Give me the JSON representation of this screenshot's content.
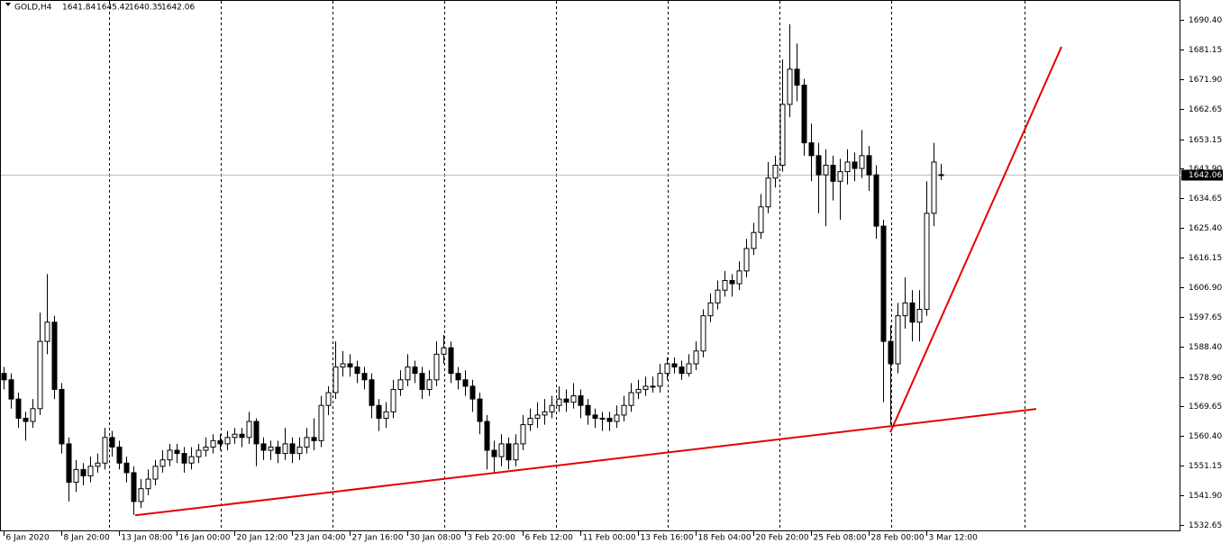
{
  "chart_data": {
    "type": "candlestick",
    "symbol": "GOLD,H4",
    "categories": [
      "6 Jan 2020",
      null,
      null,
      null,
      null,
      null,
      null,
      null,
      "8 Jan 20:00",
      null,
      null,
      null,
      null,
      null,
      null,
      null,
      "13 Jan 08:00",
      null,
      null,
      null,
      null,
      null,
      null,
      null,
      "16 Jan 00:00",
      null,
      null,
      null,
      null,
      null,
      null,
      null,
      "20 Jan 12:00",
      null,
      null,
      null,
      null,
      null,
      null,
      null,
      "23 Jan 04:00",
      null,
      null,
      null,
      null,
      null,
      null,
      null,
      "27 Jan 16:00",
      null,
      null,
      null,
      null,
      null,
      null,
      null,
      "30 Jan 08:00",
      null,
      null,
      null,
      null,
      null,
      null,
      null,
      "3 Feb 20:00",
      null,
      null,
      null,
      null,
      null,
      null,
      null,
      "6 Feb 12:00",
      null,
      null,
      null,
      null,
      null,
      null,
      null,
      "11 Feb 00:00",
      null,
      null,
      null,
      null,
      null,
      null,
      null,
      "13 Feb 16:00",
      null,
      null,
      null,
      null,
      null,
      null,
      null,
      "18 Feb 04:00",
      null,
      null,
      null,
      null,
      null,
      null,
      null,
      "20 Feb 20:00",
      null,
      null,
      null,
      null,
      null,
      null,
      null,
      "25 Feb 08:00",
      null,
      null,
      null,
      null,
      null,
      null,
      null,
      "28 Feb 00:00",
      null,
      null,
      null,
      null,
      null,
      null,
      null,
      "3 Mar 12:00",
      null,
      null
    ],
    "open": [
      1580,
      1578,
      1572,
      1566,
      1565,
      1569,
      1590,
      1596,
      1575,
      1558,
      1546,
      1550,
      1548,
      1551,
      1552,
      1560,
      1557,
      1552,
      1549,
      1540,
      1544,
      1547,
      1551,
      1553,
      1556,
      1555,
      1552,
      1554,
      1556,
      1557,
      1559,
      1558,
      1560,
      1561,
      1560,
      1565,
      1558,
      1556,
      1557,
      1555,
      1558,
      1555,
      1557,
      1560,
      1559,
      1570,
      1574,
      1582,
      1583,
      1582,
      1580,
      1578,
      1570,
      1566,
      1568,
      1575,
      1578,
      1582,
      1580,
      1575,
      1578,
      1586,
      1588,
      1580,
      1578,
      1576,
      1572,
      1565,
      1556,
      1554,
      1558,
      1553,
      1558,
      1564,
      1566,
      1567,
      1568,
      1570,
      1572,
      1571,
      1573,
      1570,
      1567,
      1566,
      1566,
      1565,
      1567,
      1570,
      1574,
      1575,
      1576,
      1576,
      1580,
      1583,
      1582,
      1580,
      1583,
      1587,
      1598,
      1602,
      1606,
      1609,
      1608,
      1612,
      1619,
      1624,
      1632,
      1641,
      1645,
      1664,
      1675,
      1670,
      1652,
      1648,
      1642,
      1645,
      1640,
      1643,
      1646,
      1644,
      1648,
      1642,
      1626,
      1590,
      1583,
      1598,
      1602,
      1596,
      1600,
      1630,
      1641.84
    ],
    "high": [
      1582,
      1580,
      1574,
      1568,
      1572,
      1599,
      1611,
      1598,
      1577,
      1560,
      1553,
      1552,
      1554,
      1555,
      1563,
      1562,
      1559,
      1554,
      1551,
      1547,
      1550,
      1553,
      1556,
      1558,
      1558,
      1557,
      1557,
      1558,
      1560,
      1561,
      1561,
      1562,
      1563,
      1563,
      1568,
      1566,
      1560,
      1559,
      1559,
      1563,
      1560,
      1560,
      1563,
      1566,
      1573,
      1576,
      1590,
      1587,
      1586,
      1584,
      1582,
      1580,
      1572,
      1571,
      1578,
      1581,
      1586,
      1584,
      1582,
      1581,
      1590,
      1592,
      1590,
      1582,
      1581,
      1578,
      1574,
      1567,
      1559,
      1561,
      1560,
      1561,
      1567,
      1569,
      1571,
      1572,
      1573,
      1576,
      1575,
      1577,
      1575,
      1572,
      1569,
      1568,
      1568,
      1570,
      1573,
      1577,
      1578,
      1579,
      1579,
      1583,
      1585,
      1585,
      1584,
      1586,
      1590,
      1600,
      1605,
      1609,
      1612,
      1611,
      1615,
      1622,
      1627,
      1636,
      1646,
      1648,
      1678,
      1689,
      1683,
      1672,
      1658,
      1652,
      1650,
      1648,
      1647,
      1650,
      1649,
      1656,
      1651,
      1645,
      1628,
      1595,
      1602,
      1610,
      1606,
      1606,
      1640,
      1652,
      1645.42
    ],
    "low": [
      1575,
      1569,
      1563,
      1559,
      1563,
      1567,
      1586,
      1572,
      1555,
      1540,
      1543,
      1545,
      1546,
      1549,
      1550,
      1554,
      1550,
      1546,
      1535.8,
      1538,
      1542,
      1545,
      1549,
      1551,
      1552,
      1549,
      1550,
      1552,
      1554,
      1555,
      1556,
      1556,
      1558,
      1557,
      1558,
      1551,
      1553,
      1553,
      1552,
      1553,
      1552,
      1553,
      1555,
      1556,
      1557,
      1567,
      1572,
      1579,
      1579,
      1577,
      1575,
      1566,
      1562,
      1563,
      1566,
      1573,
      1576,
      1577,
      1572,
      1573,
      1576,
      1583,
      1577,
      1575,
      1573,
      1568,
      1561,
      1550,
      1549,
      1551,
      1550,
      1551,
      1556,
      1562,
      1563,
      1564,
      1566,
      1568,
      1568,
      1569,
      1566,
      1564,
      1563,
      1562,
      1562,
      1563,
      1565,
      1568,
      1572,
      1573,
      1574,
      1574,
      1578,
      1580,
      1578,
      1579,
      1581,
      1585,
      1596,
      1600,
      1604,
      1604,
      1606,
      1610,
      1617,
      1622,
      1630,
      1638,
      1643,
      1660,
      1665,
      1648,
      1640,
      1630,
      1626,
      1634,
      1628,
      1639,
      1640,
      1641,
      1637,
      1622,
      1571,
      1564,
      1580,
      1594,
      1590,
      1590,
      1598,
      1626,
      1640.35
    ],
    "close": [
      1578,
      1572,
      1566,
      1565,
      1569,
      1590,
      1596,
      1575,
      1558,
      1546,
      1550,
      1548,
      1551,
      1552,
      1560,
      1557,
      1552,
      1549,
      1540,
      1544,
      1547,
      1551,
      1553,
      1556,
      1555,
      1552,
      1554,
      1556,
      1557,
      1559,
      1558,
      1560,
      1561,
      1560,
      1565,
      1558,
      1556,
      1557,
      1555,
      1558,
      1555,
      1557,
      1560,
      1559,
      1570,
      1574,
      1582,
      1583,
      1582,
      1580,
      1578,
      1570,
      1566,
      1568,
      1575,
      1578,
      1582,
      1580,
      1575,
      1578,
      1586,
      1588,
      1580,
      1578,
      1576,
      1572,
      1565,
      1556,
      1554,
      1558,
      1553,
      1558,
      1564,
      1566,
      1567,
      1568,
      1570,
      1572,
      1571,
      1573,
      1570,
      1567,
      1566,
      1566,
      1565,
      1567,
      1570,
      1574,
      1575,
      1576,
      1576,
      1580,
      1583,
      1582,
      1580,
      1583,
      1587,
      1598,
      1602,
      1606,
      1609,
      1608,
      1612,
      1619,
      1624,
      1632,
      1641,
      1645,
      1664,
      1675,
      1670,
      1652,
      1648,
      1642,
      1645,
      1640,
      1643,
      1646,
      1644,
      1648,
      1642,
      1626,
      1590,
      1583,
      1598,
      1602,
      1596,
      1600,
      1630,
      1646,
      1642.06
    ],
    "colors": {
      "up": "#ffffff",
      "down": "#000000",
      "wick": "#000000",
      "price_line": "#c0c0c0"
    },
    "ylim": [
      1530.7,
      1696.6
    ],
    "yticks": [
      {
        "value": 1690.4,
        "label": "1690.40"
      },
      1681.15,
      {
        "value": 1671.9,
        "label": "1671.90"
      },
      1662.65,
      1653.15,
      {
        "value": 1643.9,
        "label": "1643.90"
      },
      1634.65,
      {
        "value": 1625.4,
        "label": "1625.40"
      },
      1616.15,
      {
        "value": 1606.9,
        "label": "1606.90"
      },
      1597.65,
      {
        "value": 1588.4,
        "label": "1588.40"
      },
      {
        "value": 1578.9,
        "label": "1578.90"
      },
      1569.65,
      {
        "value": 1560.4,
        "label": "1560.40"
      },
      1551.15,
      {
        "value": 1541.9,
        "label": "1541.90"
      },
      1532.65
    ],
    "trendlines": [
      {
        "color": "#e60000",
        "x": [
          18.25,
          143.25
        ],
        "y": [
          1535.7,
          1568.9
        ]
      },
      {
        "color": "#e60000",
        "x": [
          123,
          146.75
        ],
        "y": [
          1561.6,
          1682.0
        ]
      }
    ]
  }
}
